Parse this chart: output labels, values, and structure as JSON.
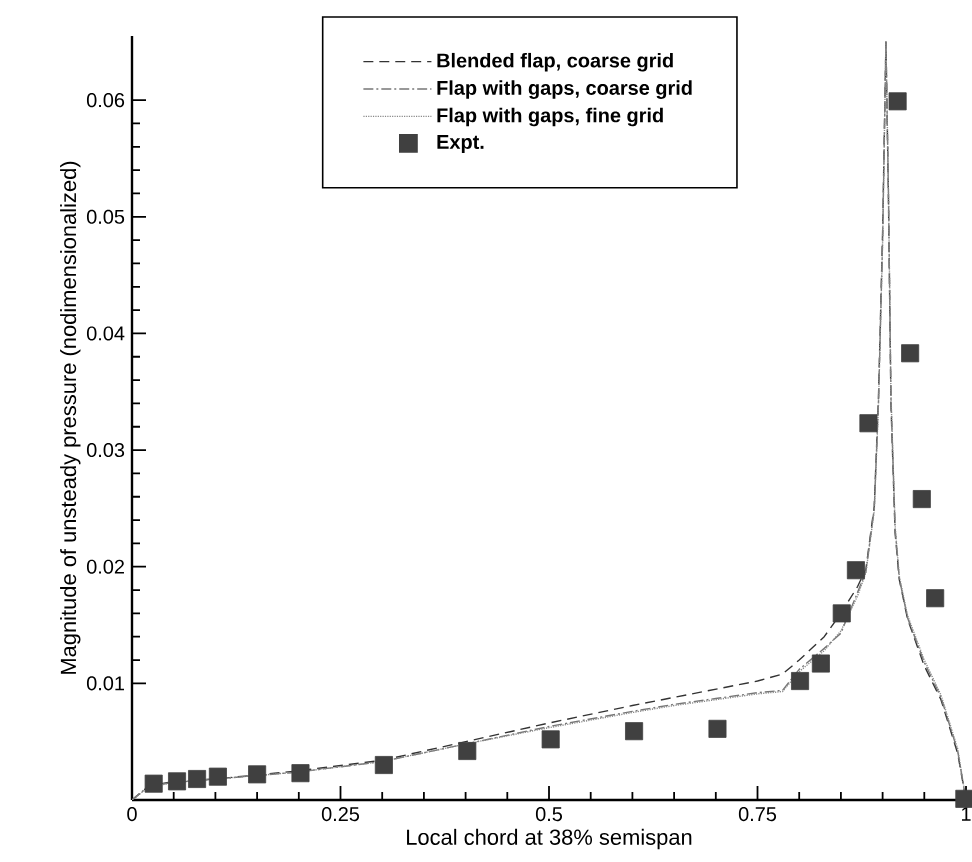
{
  "chart_data": {
    "type": "line",
    "xlabel": "Local chord at 38% semispan",
    "ylabel": "Magnitude of unsteady pressure (nodimensionalized)",
    "xlim": [
      0,
      1
    ],
    "ylim": [
      0,
      0.0655
    ],
    "xticks": [
      0,
      0.25,
      0.5,
      0.75,
      1
    ],
    "yticks": [
      0.01,
      0.02,
      0.03,
      0.04,
      0.05,
      0.06
    ],
    "legend": "top",
    "grid": false,
    "series": [
      {
        "name": "Blended flap, coarse grid",
        "color": "#333333",
        "line_style": "dashed",
        "x": [
          0,
          0.02,
          0.05,
          0.1,
          0.2,
          0.3,
          0.4,
          0.5,
          0.6,
          0.65,
          0.7,
          0.75,
          0.78,
          0.8,
          0.83,
          0.85,
          0.87,
          0.88,
          0.89,
          0.895,
          0.9,
          0.904,
          0.907,
          0.91,
          0.915,
          0.92,
          0.93,
          0.95,
          0.97,
          0.99,
          1.0
        ],
        "values": [
          0,
          0.0012,
          0.0016,
          0.0018,
          0.0025,
          0.0034,
          0.005,
          0.0066,
          0.0081,
          0.0088,
          0.0095,
          0.0102,
          0.0108,
          0.012,
          0.014,
          0.016,
          0.0183,
          0.0198,
          0.0252,
          0.0344,
          0.0487,
          0.065,
          0.0516,
          0.034,
          0.0229,
          0.0189,
          0.0155,
          0.0115,
          0.0086,
          0.004,
          0
        ]
      },
      {
        "name": "Flap with gaps, coarse grid",
        "color": "#777777",
        "line_style": "dashdot",
        "x": [
          0,
          0.02,
          0.05,
          0.1,
          0.2,
          0.3,
          0.4,
          0.5,
          0.6,
          0.65,
          0.7,
          0.75,
          0.78,
          0.8,
          0.83,
          0.85,
          0.87,
          0.88,
          0.89,
          0.895,
          0.9,
          0.904,
          0.907,
          0.91,
          0.915,
          0.92,
          0.93,
          0.95,
          0.97,
          0.99,
          1.0
        ],
        "values": [
          0,
          0.0012,
          0.0015,
          0.0018,
          0.0024,
          0.0033,
          0.0048,
          0.0063,
          0.0076,
          0.0082,
          0.0087,
          0.0092,
          0.0094,
          0.0112,
          0.013,
          0.0143,
          0.0178,
          0.0196,
          0.025,
          0.034,
          0.048,
          0.065,
          0.052,
          0.0345,
          0.0232,
          0.019,
          0.0156,
          0.0118,
          0.0088,
          0.0042,
          0
        ]
      },
      {
        "name": "Flap with gaps, fine grid",
        "color": "#888888",
        "line_style": "dotted",
        "x": [
          0,
          0.02,
          0.05,
          0.1,
          0.2,
          0.3,
          0.4,
          0.5,
          0.6,
          0.65,
          0.7,
          0.75,
          0.78,
          0.8,
          0.83,
          0.85,
          0.87,
          0.88,
          0.89,
          0.895,
          0.9,
          0.904,
          0.907,
          0.91,
          0.915,
          0.92,
          0.93,
          0.95,
          0.97,
          0.99,
          1.0
        ],
        "values": [
          0,
          0.0011,
          0.0015,
          0.0018,
          0.0024,
          0.0033,
          0.0048,
          0.0062,
          0.0075,
          0.0081,
          0.0086,
          0.0091,
          0.0093,
          0.011,
          0.0128,
          0.0145,
          0.0175,
          0.0195,
          0.0248,
          0.0338,
          0.0478,
          0.065,
          0.0522,
          0.0348,
          0.0235,
          0.0192,
          0.0158,
          0.012,
          0.009,
          0.0044,
          0
        ]
      },
      {
        "name": "Expt.",
        "type": "scatter",
        "marker": "square",
        "color": "#404040",
        "x": [
          0.026,
          0.054,
          0.078,
          0.103,
          0.15,
          0.202,
          0.302,
          0.402,
          0.502,
          0.602,
          0.702,
          0.801,
          0.826,
          0.851,
          0.868,
          0.883,
          0.918,
          0.933,
          0.947,
          0.963,
          0.998
        ],
        "values": [
          0.0014,
          0.0016,
          0.0018,
          0.002,
          0.0022,
          0.0023,
          0.003,
          0.0042,
          0.0052,
          0.0059,
          0.0061,
          0.0102,
          0.0117,
          0.016,
          0.0197,
          0.0323,
          0.0599,
          0.0383,
          0.0258,
          0.0173,
          0.0001
        ]
      }
    ]
  }
}
